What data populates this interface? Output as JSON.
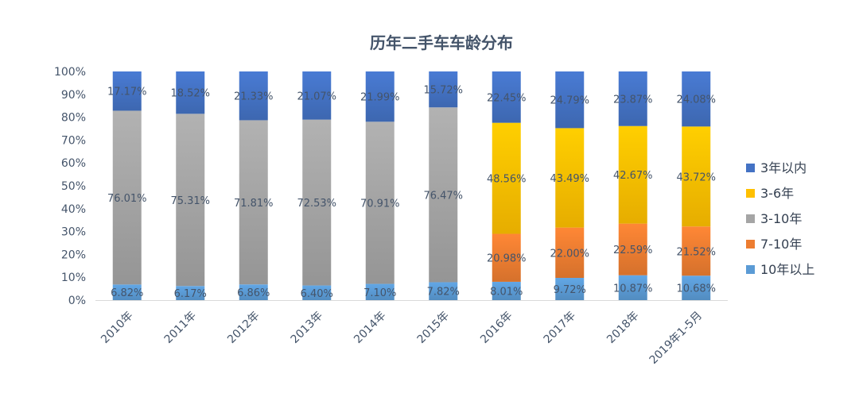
{
  "chart_data": {
    "type": "bar",
    "stacked": true,
    "percent": true,
    "title": "历年二手车车龄分布",
    "xlabel": "",
    "ylabel": "",
    "ylim": [
      0,
      100
    ],
    "yticks": [
      "0%",
      "10%",
      "20%",
      "30%",
      "40%",
      "50%",
      "60%",
      "70%",
      "80%",
      "90%",
      "100%"
    ],
    "categories": [
      "2010年",
      "2011年",
      "2012年",
      "2013年",
      "2014年",
      "2015年",
      "2016年",
      "2017年",
      "2018年",
      "2019年1-5月"
    ],
    "grid": false,
    "legend_position": "right",
    "series": [
      {
        "name": "10年以上",
        "color": "#5b9bd5",
        "values": [
          6.82,
          6.17,
          6.86,
          6.4,
          7.1,
          7.82,
          8.01,
          9.72,
          10.87,
          10.68
        ],
        "labels": [
          "6.82%",
          "6.17%",
          "6.86%",
          "6.40%",
          "7.10%",
          "7.82%",
          "8.01%",
          "9.72%",
          "10.87%",
          "10.68%"
        ]
      },
      {
        "name": "7-10年",
        "color": "#ed7d31",
        "values": [
          0,
          0,
          0,
          0,
          0,
          0,
          20.98,
          22.0,
          22.59,
          21.52
        ],
        "labels": [
          "",
          "",
          "",
          "",
          "",
          "",
          "20.98%",
          "22.00%",
          "22.59%",
          "21.52%"
        ]
      },
      {
        "name": "3-10年",
        "color": "#a5a5a5",
        "values": [
          76.01,
          75.31,
          71.81,
          72.53,
          70.91,
          76.47,
          0,
          0,
          0,
          0
        ],
        "labels": [
          "76.01%",
          "75.31%",
          "71.81%",
          "72.53%",
          "70.91%",
          "76.47%",
          "",
          "",
          "",
          ""
        ]
      },
      {
        "name": "3-6年",
        "color": "#ffc000",
        "values": [
          0,
          0,
          0,
          0,
          0,
          0,
          48.56,
          43.49,
          42.67,
          43.72
        ],
        "labels": [
          "",
          "",
          "",
          "",
          "",
          "",
          "48.56%",
          "43.49%",
          "42.67%",
          "43.72%"
        ]
      },
      {
        "name": "3年以内",
        "color": "#4472c4",
        "values": [
          17.17,
          18.52,
          21.33,
          21.07,
          21.99,
          15.72,
          22.45,
          24.79,
          23.87,
          24.08
        ],
        "labels": [
          "17.17%",
          "18.52%",
          "21.33%",
          "21.07%",
          "21.99%",
          "15.72%",
          "22.45%",
          "24.79%",
          "23.87%",
          "24.08%"
        ]
      }
    ],
    "legend_order": [
      "3年以内",
      "3-6年",
      "3-10年",
      "7-10年",
      "10年以上"
    ]
  }
}
